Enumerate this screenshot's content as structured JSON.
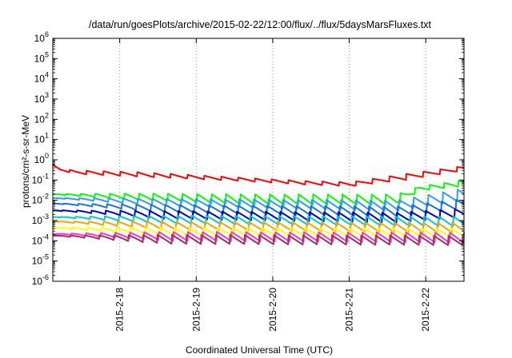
{
  "chart_data": {
    "type": "line",
    "title": "/data/run/goesPlots/archive/2015-02-22/12:00/flux/../flux/5daysMarsFluxes.txt",
    "xlabel": "Coordinated Universal Time (UTC)",
    "ylabel": "protons/cm²-s-sr-MeV",
    "yscale": "log",
    "ylim": [
      1e-06,
      1000000.0
    ],
    "xlim": [
      "2015-02-17 03:00",
      "2015-02-22 12:00"
    ],
    "y_ticks": [
      {
        "base": "10",
        "exp": "-6",
        "value": 1e-06
      },
      {
        "base": "10",
        "exp": "-5",
        "value": 1e-05
      },
      {
        "base": "10",
        "exp": "-4",
        "value": 0.0001
      },
      {
        "base": "10",
        "exp": "-3",
        "value": 0.001
      },
      {
        "base": "10",
        "exp": "-2",
        "value": 0.01
      },
      {
        "base": "10",
        "exp": "-1",
        "value": 0.1
      },
      {
        "base": "10",
        "exp": "0",
        "value": 1
      },
      {
        "base": "10",
        "exp": "1",
        "value": 10
      },
      {
        "base": "10",
        "exp": "2",
        "value": 100
      },
      {
        "base": "10",
        "exp": "3",
        "value": 1000
      },
      {
        "base": "10",
        "exp": "4",
        "value": 10000
      },
      {
        "base": "10",
        "exp": "5",
        "value": 100000
      },
      {
        "base": "10",
        "exp": "6",
        "value": 1000000
      }
    ],
    "x_ticks": [
      {
        "label": "2015-2-18",
        "date": "2015-02-18"
      },
      {
        "label": "2015-2-19",
        "date": "2015-02-19"
      },
      {
        "label": "2015-2-20",
        "date": "2015-02-20"
      },
      {
        "label": "2015-2-21",
        "date": "2015-02-21"
      },
      {
        "label": "2015-2-22",
        "date": "2015-02-22"
      }
    ],
    "series": [
      {
        "color": "#ff0000",
        "lo": 0.05,
        "hi": 0.5,
        "amp": 1.4,
        "tooth_days": 0.22,
        "profile": [
          [
            0,
            0.6,
            0.6
          ],
          [
            0.04,
            0.45,
            0.45
          ],
          [
            0.1,
            0.3,
            0.35
          ],
          [
            0.3,
            0.2,
            0.3
          ],
          [
            1.1,
            0.15,
            0.25
          ],
          [
            2.5,
            0.09,
            0.13
          ],
          [
            3.3,
            0.06,
            0.09
          ],
          [
            3.9,
            0.05,
            0.08
          ],
          [
            4.6,
            0.1,
            0.2
          ],
          [
            5.375,
            0.3,
            0.5
          ]
        ]
      },
      {
        "color": "#00ff00",
        "lo": 0.006,
        "hi": 0.02,
        "amp": 2.0,
        "tooth_days": 0.19,
        "profile": [
          [
            0,
            0.02,
            0.02
          ],
          [
            1.0,
            0.011,
            0.022
          ],
          [
            2.5,
            0.006,
            0.02
          ],
          [
            4.5,
            0.006,
            0.02
          ],
          [
            4.8,
            0.03,
            0.05
          ],
          [
            5.375,
            0.05,
            0.1
          ]
        ]
      },
      {
        "color": "#3399ff",
        "lo": 0.003,
        "hi": 0.015,
        "amp": 2.4,
        "tooth_days": 0.19,
        "profile": [
          [
            0,
            0.013,
            0.013
          ],
          [
            1.5,
            0.005,
            0.012
          ],
          [
            4.5,
            0.003,
            0.01
          ],
          [
            5.375,
            0.01,
            0.04
          ]
        ]
      },
      {
        "color": "#1f6fd9",
        "lo": 0.0015,
        "hi": 0.008,
        "amp": 2.6,
        "tooth_days": 0.19,
        "profile": [
          [
            0,
            0.007,
            0.007
          ],
          [
            1.5,
            0.0025,
            0.006
          ],
          [
            4.5,
            0.0015,
            0.005
          ],
          [
            5.375,
            0.004,
            0.012
          ]
        ]
      },
      {
        "color": "#0000cc",
        "lo": 0.0008,
        "hi": 0.004,
        "amp": 2.6,
        "tooth_days": 0.19,
        "profile": [
          [
            0,
            0.0032,
            0.0032
          ],
          [
            1.5,
            0.0012,
            0.003
          ],
          [
            4.5,
            0.0008,
            0.0025
          ],
          [
            5.375,
            0.0015,
            0.004
          ]
        ]
      },
      {
        "color": "#00cccc",
        "lo": 0.0005,
        "hi": 0.002,
        "amp": 2.8,
        "tooth_days": 0.19,
        "profile": [
          [
            0,
            0.0015,
            0.0015
          ],
          [
            1.5,
            0.0007,
            0.0018
          ],
          [
            5.375,
            0.0005,
            0.0016
          ]
        ]
      },
      {
        "color": "#ffa000",
        "lo": 0.0002,
        "hi": 0.001,
        "amp": 3.0,
        "tooth_days": 0.19,
        "profile": [
          [
            0,
            0.0009,
            0.0009
          ],
          [
            1.5,
            0.00035,
            0.0009
          ],
          [
            5.375,
            0.00025,
            0.0008
          ]
        ]
      },
      {
        "color": "#ffff00",
        "lo": 0.0001,
        "hi": 0.0005,
        "amp": 3.2,
        "tooth_days": 0.19,
        "profile": [
          [
            0,
            0.00045,
            0.00045
          ],
          [
            1.5,
            0.00018,
            0.00045
          ],
          [
            5.375,
            0.00015,
            0.0004
          ]
        ]
      },
      {
        "color": "#ff33cc",
        "lo": 6e-05,
        "hi": 0.0003,
        "amp": 3.4,
        "tooth_days": 0.19,
        "profile": [
          [
            0,
            0.00022,
            0.00022
          ],
          [
            1.5,
            0.0001,
            0.00028
          ],
          [
            5.375,
            8e-05,
            0.00026
          ]
        ]
      },
      {
        "color": "#993366",
        "lo": 5e-05,
        "hi": 0.0002,
        "amp": 3.4,
        "tooth_days": 0.19,
        "profile": [
          [
            0,
            0.00018,
            0.00018
          ],
          [
            1.5,
            7e-05,
            0.0002
          ],
          [
            5.375,
            6e-05,
            0.00018
          ]
        ]
      }
    ]
  }
}
